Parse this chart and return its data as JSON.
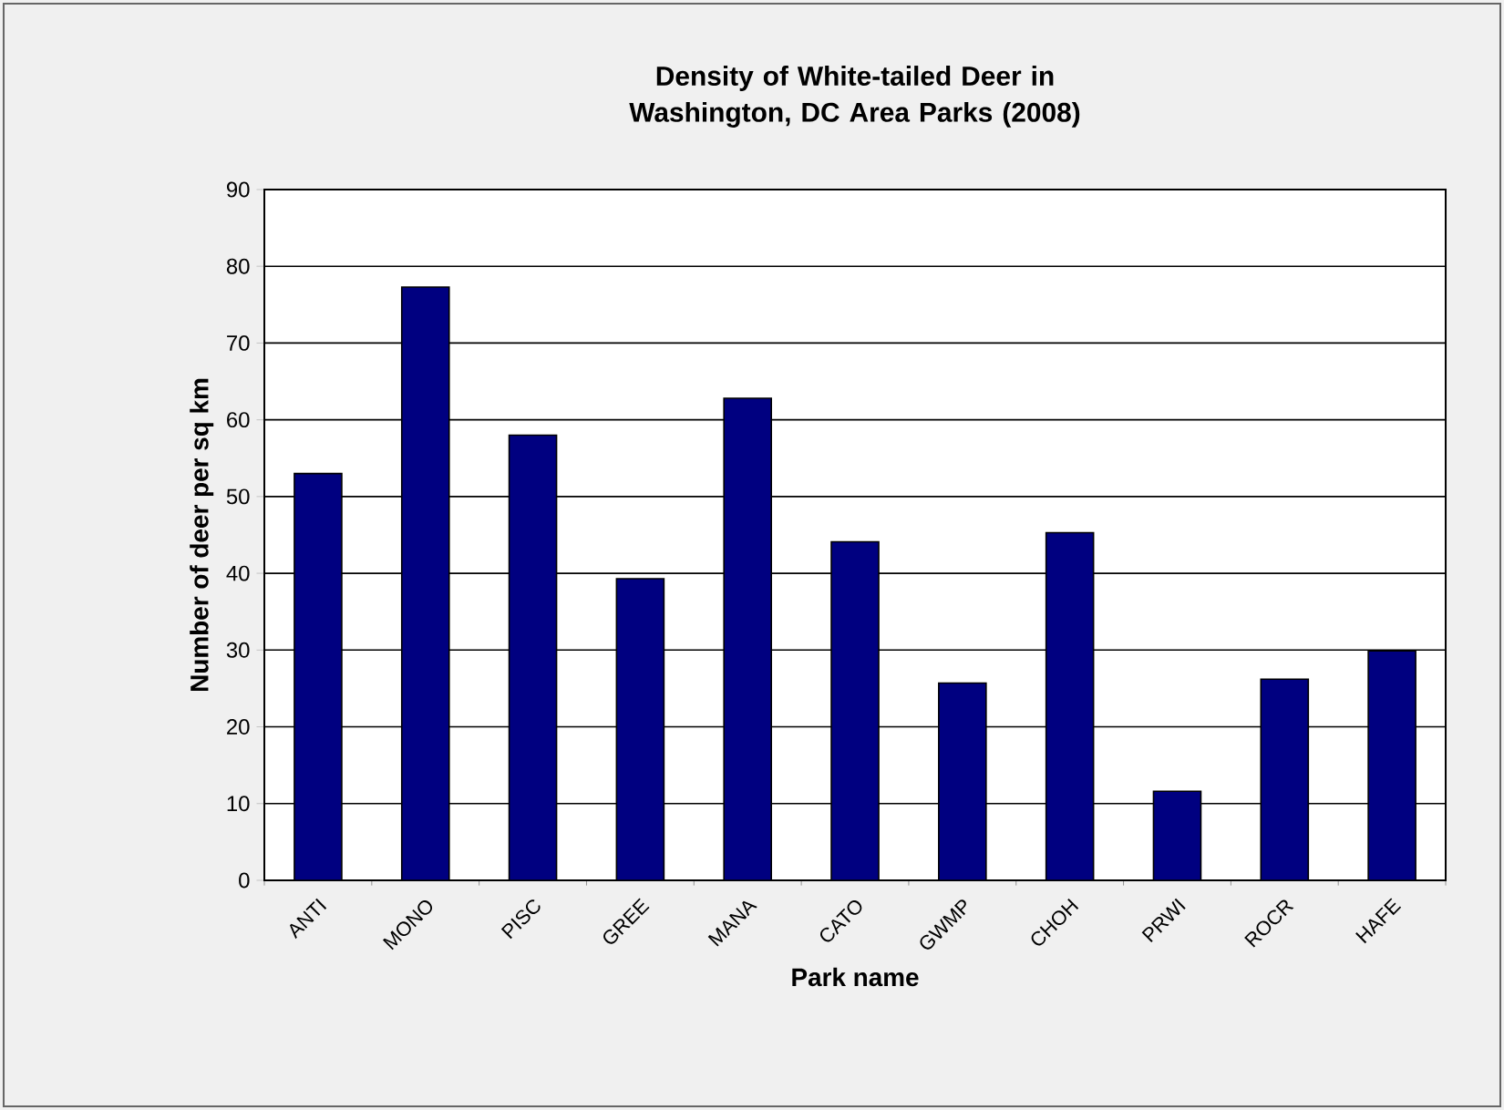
{
  "chart_data": {
    "type": "bar",
    "title": "Density of White-tailed Deer in Washington, DC Area Parks (2008)",
    "xlabel": "Park name",
    "ylabel": "Number of deer per sq km",
    "categories": [
      "ANTI",
      "MONO",
      "PISC",
      "GREE",
      "MANA",
      "CATO",
      "GWMP",
      "CHOH",
      "PRWI",
      "ROCR",
      "HAFE"
    ],
    "values": [
      53.0,
      77.3,
      58.0,
      39.3,
      62.8,
      44.1,
      25.7,
      45.3,
      11.6,
      26.2,
      29.9
    ],
    "color": "#000080",
    "ylim": [
      0,
      90
    ],
    "yticks": [
      0,
      10,
      20,
      30,
      40,
      50,
      60,
      70,
      80,
      90
    ],
    "grid": "y"
  }
}
